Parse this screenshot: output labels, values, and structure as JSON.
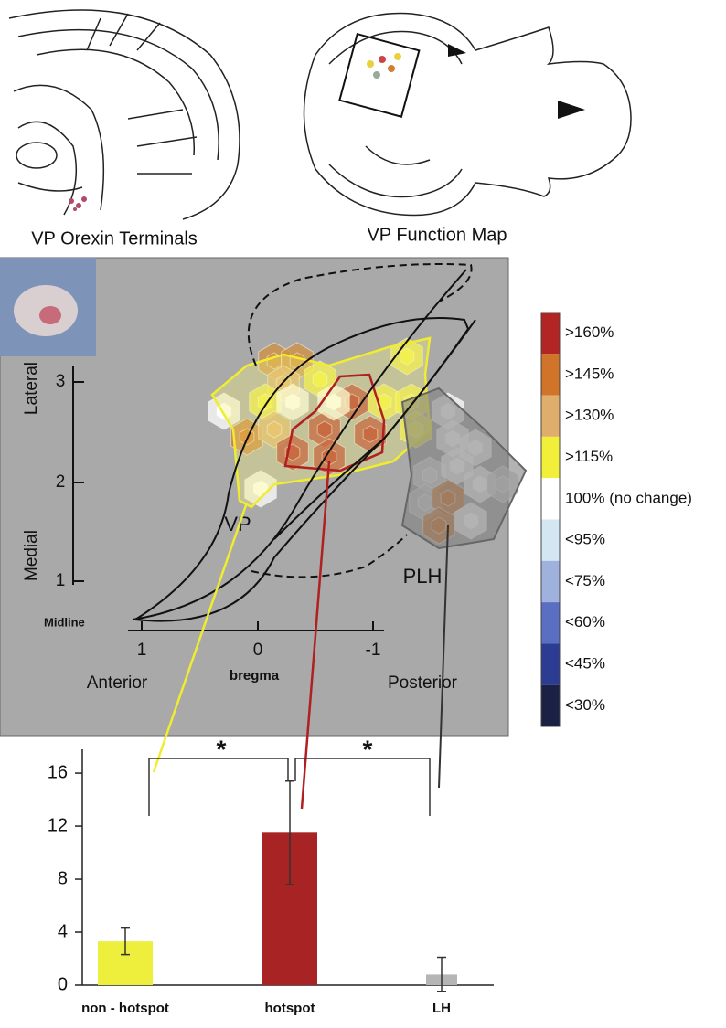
{
  "figure": {
    "panel_labels": [
      "VP Orexin Terminals",
      "VP Function Map"
    ],
    "map": {
      "region_labels": [
        "VP",
        "PLH"
      ],
      "y_axis_labels": [
        "Lateral",
        "Medial"
      ],
      "y_tick_labels": [
        "3",
        "2",
        "1"
      ],
      "x_tick_labels": [
        "1",
        "0",
        "-1"
      ],
      "midline": "Midline",
      "x_axis_labels": [
        "Anterior",
        "bregma",
        "Posterior"
      ]
    },
    "color_scale": {
      "labels": [
        ">160%",
        ">145%",
        ">130%",
        ">115%",
        "100% (no change)",
        "<95%",
        "<75%",
        "<60%",
        "<45%",
        "<30%"
      ],
      "colors": [
        "#b32424",
        "#cf7428",
        "#e0ae6c",
        "#f2ef3a",
        "#ffffff",
        "#d3e6f2",
        "#9fb2de",
        "#5a6ec2",
        "#2b3c92",
        "#1b2144"
      ]
    },
    "significance": [
      "*",
      "*"
    ]
  },
  "chart_data": {
    "type": "bar",
    "categories": [
      "non - hotspot",
      "hotspot",
      "LH"
    ],
    "values": [
      3.3,
      11.5,
      0.8
    ],
    "errors": [
      1.0,
      3.9,
      1.3
    ],
    "colors": [
      "#eeee3c",
      "#a82323",
      "#b5b5b5"
    ],
    "ylim": [
      0,
      17.8
    ],
    "yticks": [
      0,
      4,
      8,
      12,
      16
    ]
  }
}
